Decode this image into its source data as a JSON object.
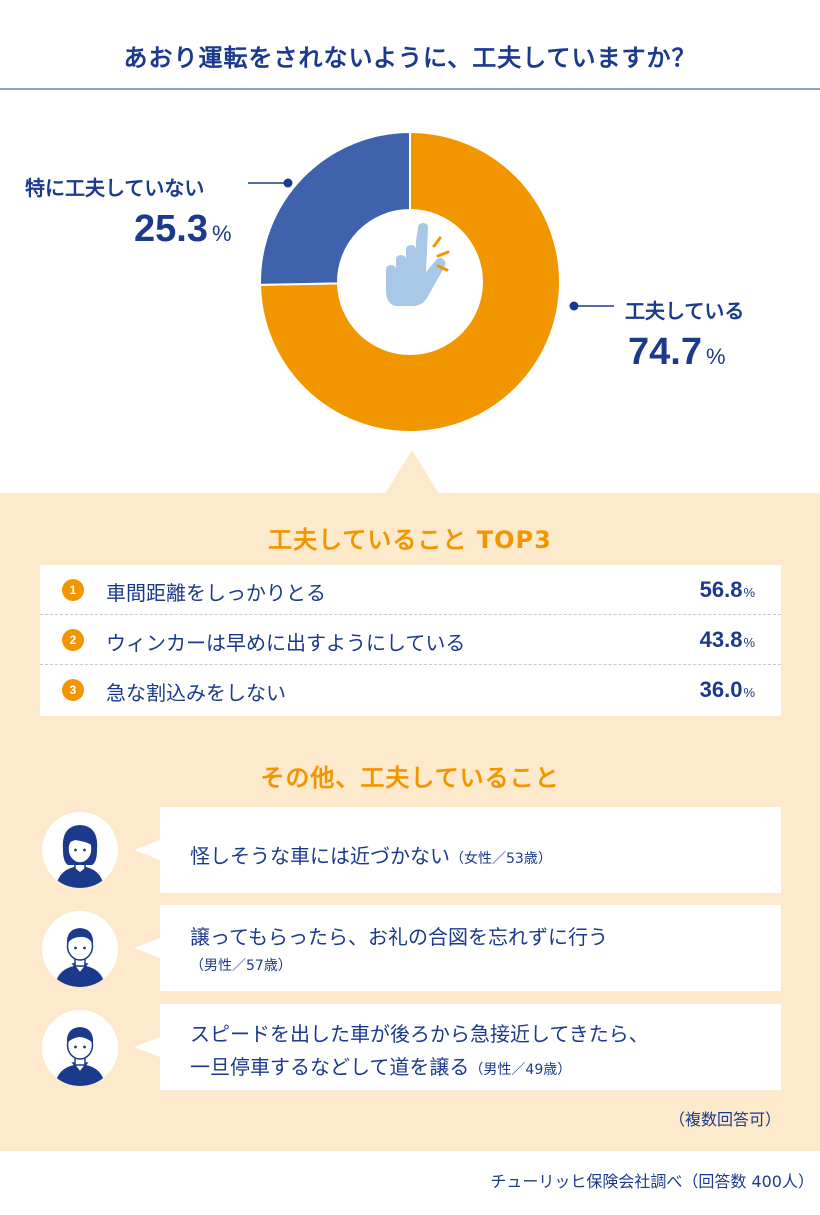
{
  "title": "あおり運転をされないように、工夫していますか？",
  "chart_data": {
    "type": "pie",
    "title": "あおり運転をされないように、工夫していますか？",
    "slices": [
      {
        "label": "工夫している",
        "value": 74.7,
        "color": "#f29600"
      },
      {
        "label": "特に工夫していない",
        "value": 25.3,
        "color": "#3f62ad"
      }
    ],
    "unit": "%"
  },
  "legend": {
    "yes_label": "工夫している",
    "yes_value": "74.7",
    "no_label": "特に工夫していない",
    "no_value": "25.3",
    "unit": "%"
  },
  "top3": {
    "title": "工夫していること TOP3",
    "items": [
      {
        "rank": "1",
        "text": "車間距離をしっかりとる",
        "value": "56.8"
      },
      {
        "rank": "2",
        "text": "ウィンカーは早めに出すようにしている",
        "value": "43.8"
      },
      {
        "rank": "3",
        "text": "急な割込みをしない",
        "value": "36.0"
      }
    ],
    "unit": "%"
  },
  "others": {
    "title": "その他、工夫していること",
    "comments": [
      {
        "line1": "怪しそうな車には近づかない",
        "attr": "（女性／53歳）"
      },
      {
        "line1": "譲ってもらったら、お礼の合図を忘れずに行う",
        "attr": "（男性／57歳）"
      },
      {
        "line1": "スピードを出した車が後ろから急接近してきたら、",
        "line2": "一旦停車するなどして道を譲る",
        "attr": "（男性／49歳）"
      }
    ]
  },
  "note": "（複数回答可）",
  "source": "チューリッヒ保険会社調べ（回答数 400人）",
  "colors": {
    "orange": "#f29600",
    "blue": "#3f62ad",
    "navy": "#1b3a8c",
    "panel": "#fde9cb",
    "icon": "#a9c8e8"
  }
}
